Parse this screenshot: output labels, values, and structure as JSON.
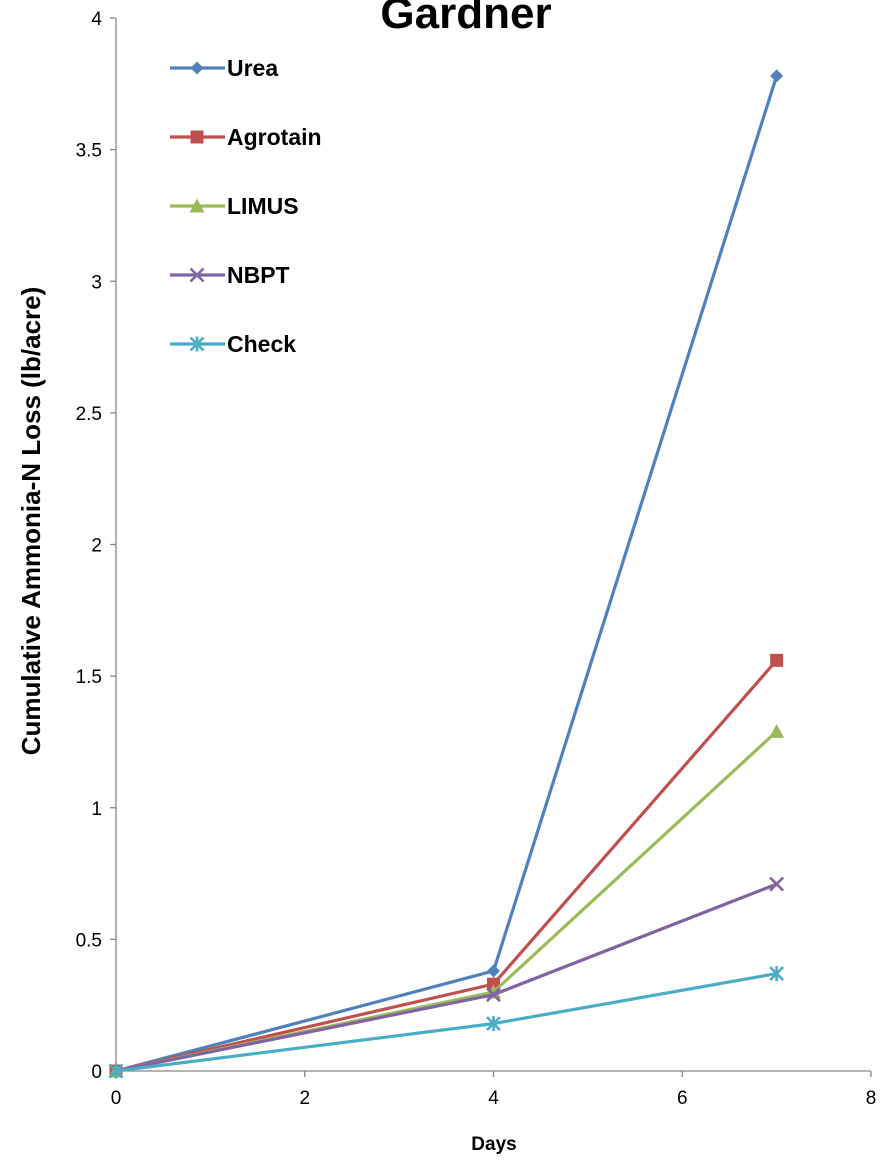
{
  "chart_data": {
    "type": "line",
    "title": "Gardner",
    "xlabel": "Days",
    "ylabel": "Cumulative Ammonia-N Loss (lb/acre)",
    "xlim": [
      0,
      8
    ],
    "ylim": [
      0,
      4
    ],
    "x_ticks": [
      "0",
      "2",
      "4",
      "6",
      "8"
    ],
    "y_ticks": [
      "0",
      "0.5",
      "1",
      "1.5",
      "2",
      "2.5",
      "3",
      "3.5",
      "4"
    ],
    "grid": false,
    "legend_position": "top-left",
    "series": [
      {
        "name": "Urea",
        "color": "#4F81BD",
        "marker": "diamond",
        "x": [
          0,
          4,
          7
        ],
        "y": [
          0,
          0.38,
          3.78
        ]
      },
      {
        "name": "Agrotain",
        "color": "#C0504D",
        "marker": "square",
        "x": [
          0,
          4,
          7
        ],
        "y": [
          0,
          0.33,
          1.56
        ]
      },
      {
        "name": "LIMUS",
        "color": "#9BBB59",
        "marker": "triangle",
        "x": [
          0,
          4,
          7
        ],
        "y": [
          0,
          0.3,
          1.29
        ]
      },
      {
        "name": "NBPT",
        "color": "#8064A2",
        "marker": "x",
        "x": [
          0,
          4,
          7
        ],
        "y": [
          0,
          0.29,
          0.71
        ]
      },
      {
        "name": "Check",
        "color": "#4BACC6",
        "marker": "star",
        "x": [
          0,
          4,
          7
        ],
        "y": [
          0,
          0.18,
          0.37
        ]
      }
    ]
  }
}
